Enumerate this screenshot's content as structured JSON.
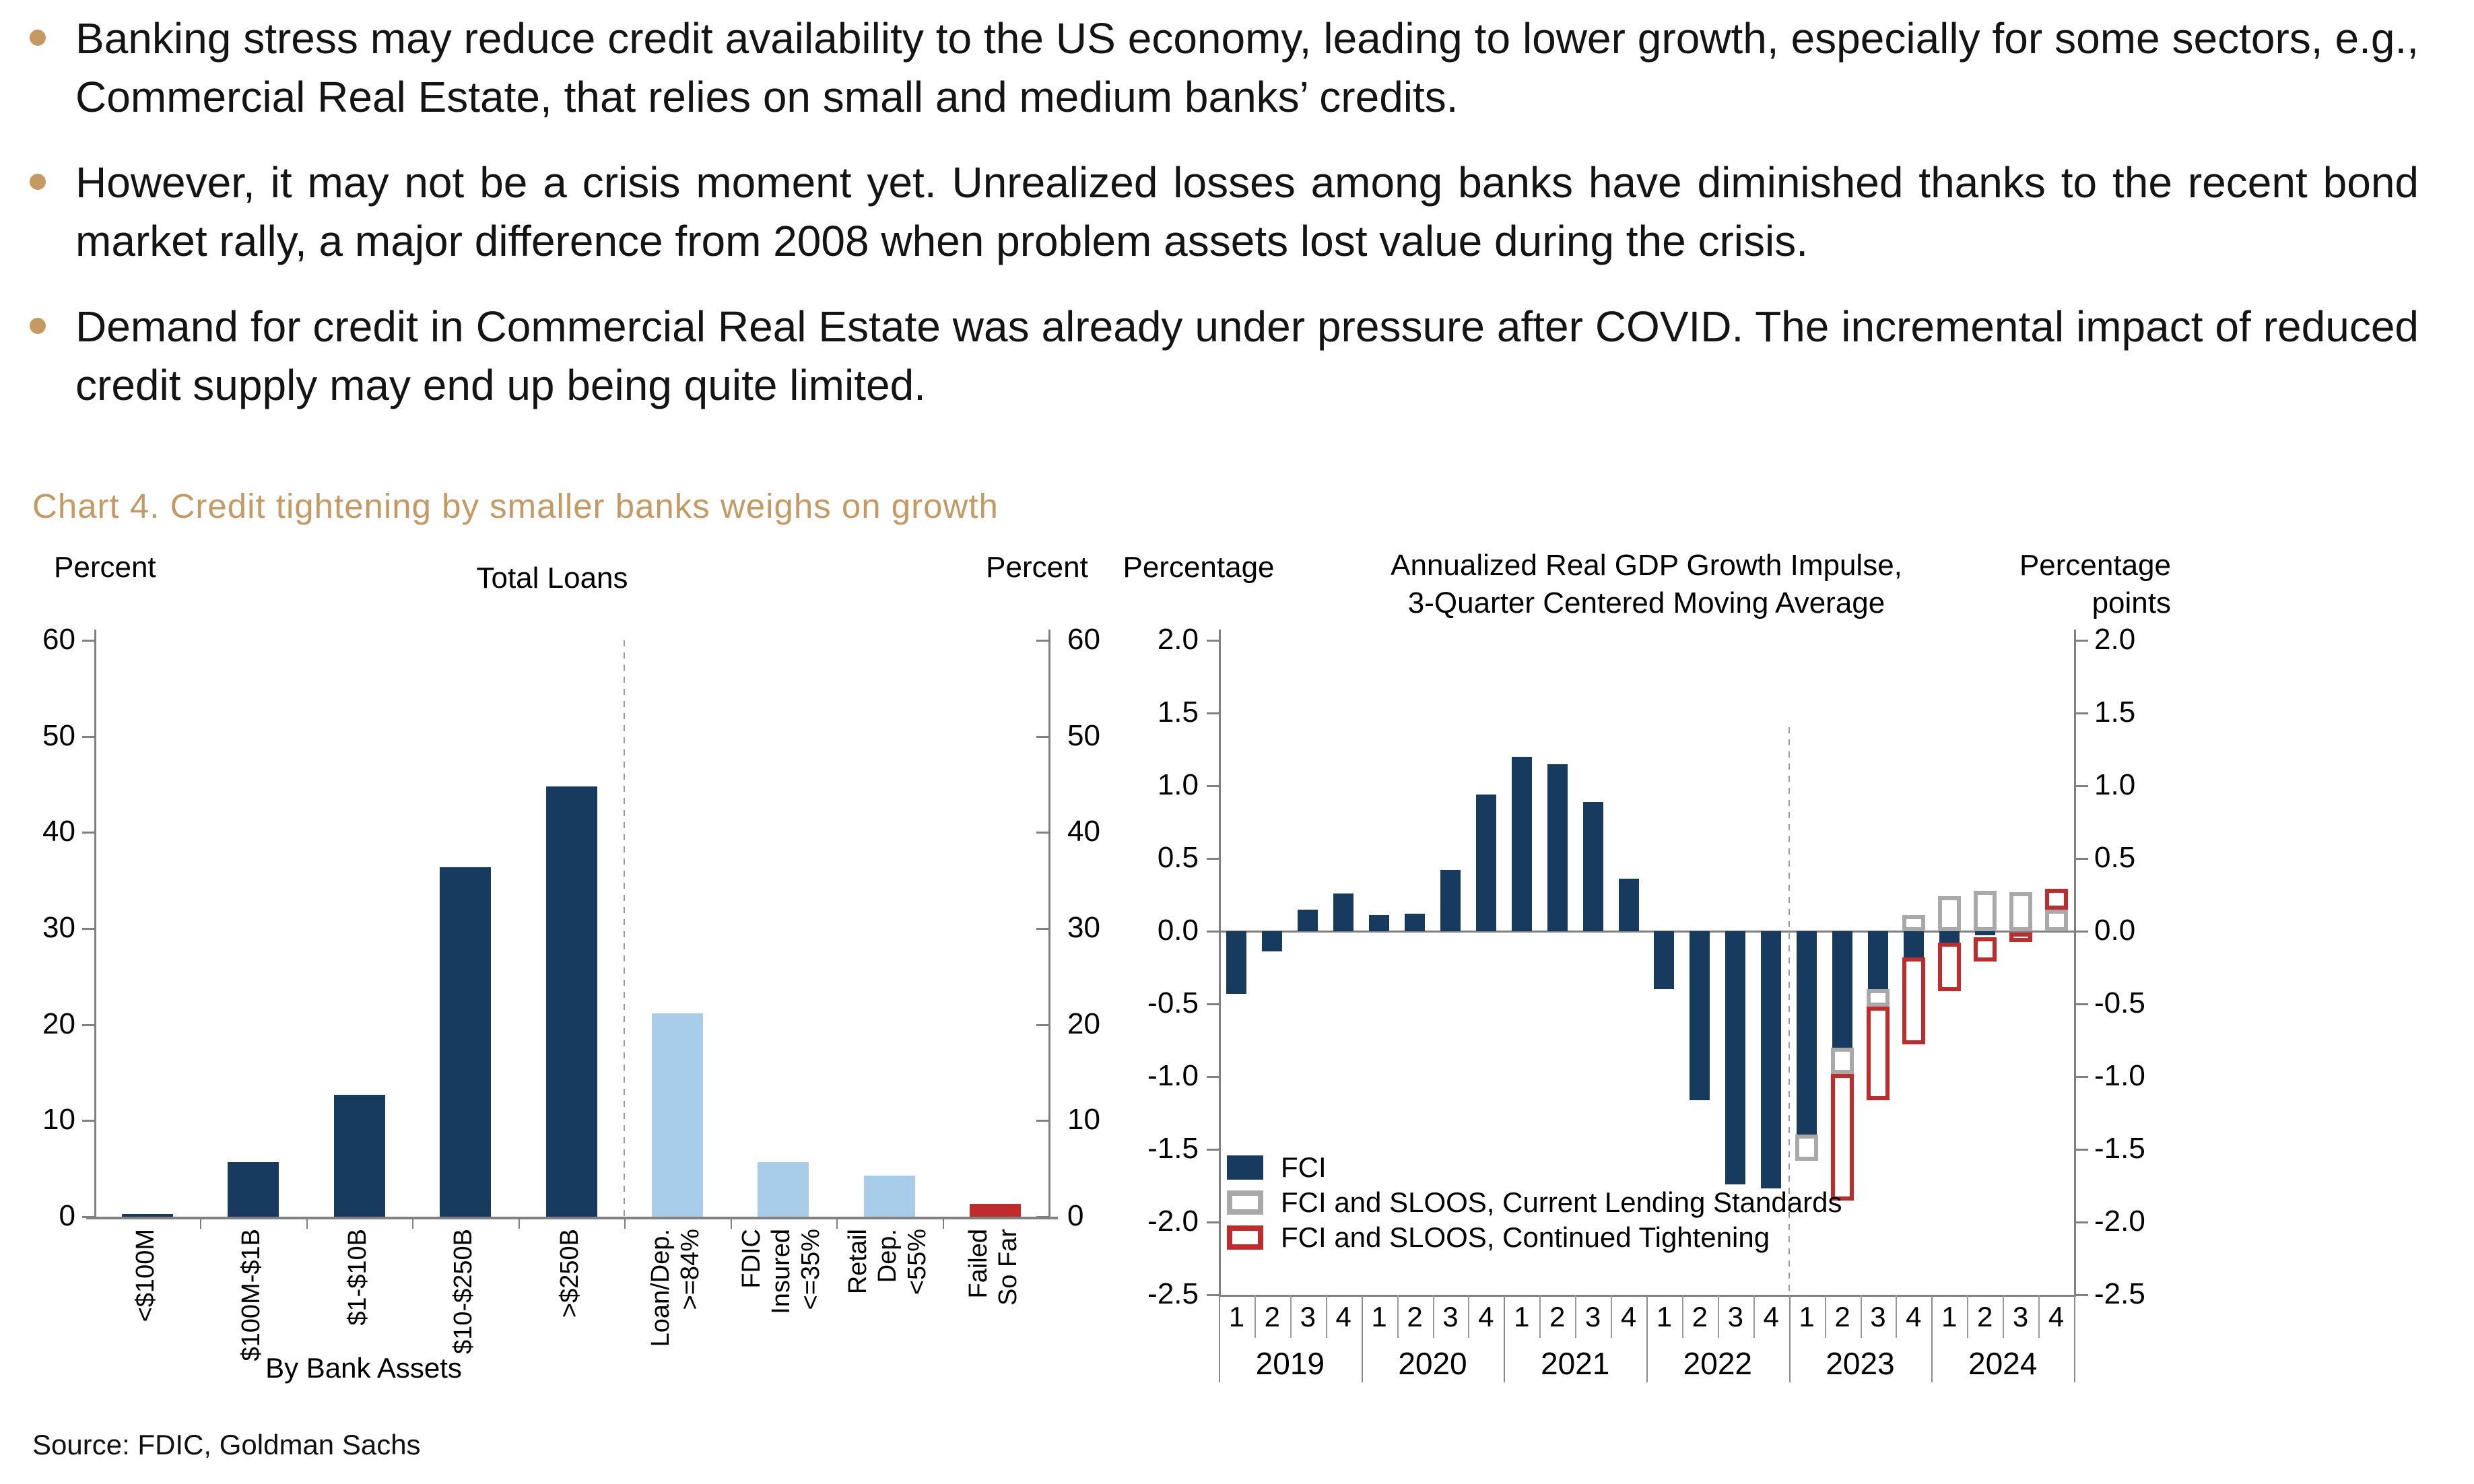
{
  "bullets": [
    "Banking stress may reduce credit availability to the US economy, leading to lower growth, especially for some sectors, e.g., Commercial Real Estate, that relies on small and medium banks’ credits.",
    "However, it may not be a crisis moment yet. Unrealized losses among banks have diminished thanks to the recent bond market rally, a major difference from 2008 when problem assets lost value during the crisis.",
    "Demand for credit in Commercial Real Estate was already under pressure after COVID. The incremental impact of reduced credit supply may end up being quite limited."
  ],
  "chart_section": {
    "title": "Chart 4. Credit tightening by smaller banks weighs on growth"
  },
  "source": "Source: FDIC, Goldman Sachs",
  "colors": {
    "navy": "#173a5f",
    "light_blue": "#a7cdea",
    "red": "#c02b2c",
    "gold": "#c59a62",
    "gray_outline": "#a9a9a9",
    "axis_gray": "#808080",
    "grid_gray": "#999999",
    "text": "#000000"
  },
  "chart_data": [
    {
      "type": "bar",
      "title": "Total Loans",
      "left_axis_label": "Percent",
      "right_axis_label": "Percent",
      "xlabel": "By Bank Assets",
      "ylim": [
        0,
        60
      ],
      "yticks": [
        0,
        10,
        20,
        30,
        40,
        50,
        60
      ],
      "categories": [
        "<$100M",
        "$100M-$1B",
        "$1-$10B",
        "$10-$250B",
        ">$250B",
        "Loan/Dep.\n>=84%",
        "FDIC\nInsured\n<=35%",
        "Retail\nDep.\n<55%",
        "Failed\nSo Far"
      ],
      "values": [
        0.3,
        5.7,
        12.7,
        36.4,
        44.8,
        21.2,
        5.7,
        4.3,
        1.3
      ],
      "bar_colors": [
        "navy",
        "navy",
        "navy",
        "navy",
        "navy",
        "light_blue",
        "light_blue",
        "light_blue",
        "red"
      ],
      "separator_after_index": 4,
      "grid": false,
      "legend_position": "none"
    },
    {
      "type": "bar",
      "title": "Annualized Real GDP Growth Impulse,\n3-Quarter Centered Moving Average",
      "left_axis_label": "Percentage",
      "right_axis_label": "Percentage\npoints",
      "ylim": [
        -2.5,
        2.0
      ],
      "yticks": [
        "2.0",
        "1.5",
        "1.0",
        "0.5",
        "0.0",
        "-0.5",
        "-1.0",
        "-1.5",
        "-2.0",
        "-2.5"
      ],
      "x": {
        "years": [
          "2019",
          "2020",
          "2021",
          "2022",
          "2023",
          "2024"
        ],
        "quarter_labels": [
          "1",
          "2",
          "3",
          "4"
        ]
      },
      "dashed_separator_after_index": 15,
      "grid": false,
      "legend_position": "bottom-left-inside",
      "legend": [
        {
          "label": "FCI",
          "swatch": "fill_navy"
        },
        {
          "label": "FCI and SLOOS, Current Lending Standards",
          "swatch": "outline_gray"
        },
        {
          "label": "FCI and SLOOS, Continued Tightening",
          "swatch": "outline_red"
        }
      ],
      "series": [
        {
          "name": "FCI",
          "style": "fill",
          "color": "navy",
          "values": [
            -0.43,
            -0.14,
            0.15,
            0.26,
            0.11,
            0.12,
            0.42,
            0.94,
            1.2,
            1.15,
            0.89,
            0.36,
            -0.4,
            -1.16,
            -1.74,
            -1.77,
            -1.4,
            -0.8,
            -0.4,
            -0.18,
            -0.08,
            -0.03,
            0,
            0
          ]
        },
        {
          "name": "FCI and SLOOS, Current Lending Standards",
          "style": "outline",
          "color": "gray_outline",
          "ranges": [
            null,
            null,
            null,
            null,
            null,
            null,
            null,
            null,
            null,
            null,
            null,
            null,
            null,
            null,
            null,
            null,
            [
              -1.4,
              -1.58
            ],
            [
              -0.8,
              -0.98
            ],
            [
              -0.4,
              -0.52
            ],
            [
              0,
              0.11
            ],
            [
              0,
              0.24
            ],
            [
              0,
              0.28
            ],
            [
              0,
              0.27
            ],
            [
              0,
              0.15
            ]
          ]
        },
        {
          "name": "FCI and SLOOS, Continued Tightening",
          "style": "outline",
          "color": "red",
          "ranges": [
            null,
            null,
            null,
            null,
            null,
            null,
            null,
            null,
            null,
            null,
            null,
            null,
            null,
            null,
            null,
            null,
            null,
            [
              -0.98,
              -1.85
            ],
            [
              -0.52,
              -1.16
            ],
            [
              -0.18,
              -0.78
            ],
            [
              -0.08,
              -0.41
            ],
            [
              -0.04,
              -0.21
            ],
            [
              -0.01,
              -0.07
            ],
            [
              0.15,
              0.29
            ]
          ]
        }
      ]
    }
  ]
}
